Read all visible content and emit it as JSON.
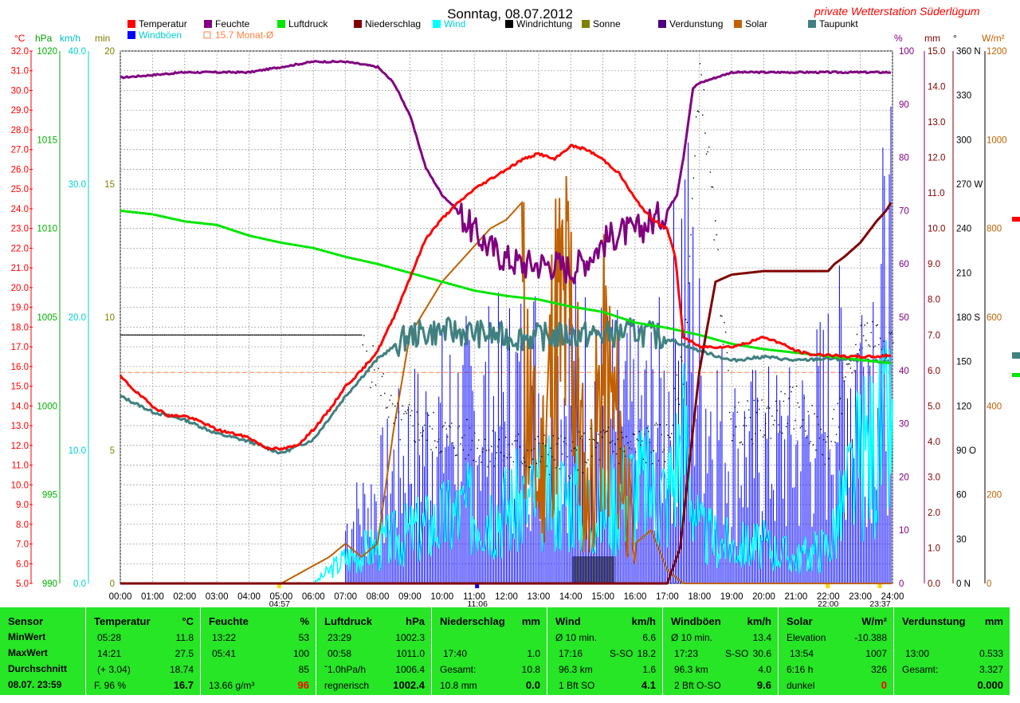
{
  "title": "Sonntag, 08.07.2012",
  "station": "private Wetterstation Süderlügum",
  "legend": [
    {
      "label": "Temperatur",
      "color": "#ff0000"
    },
    {
      "label": "Feuchte",
      "color": "#800080"
    },
    {
      "label": "Luftdruck",
      "color": "#00e600"
    },
    {
      "label": "Niederschlag",
      "color": "#800000"
    },
    {
      "label": "Wind",
      "color": "#00ffff"
    },
    {
      "label": "Windrichtung",
      "color": "#000000"
    },
    {
      "label": "Sonne",
      "color": "#808000"
    },
    {
      "label": "Verdunstung",
      "color": "#4b0082"
    },
    {
      "label": "Solar",
      "color": "#c06000"
    },
    {
      "label": "Taupunkt",
      "color": "#408080"
    },
    {
      "label": "Windböen",
      "color": "#0000ff"
    },
    {
      "label": "15.7 Monat-Ø",
      "color": "#ff8040"
    }
  ],
  "axes": {
    "units": {
      "temp": "°C",
      "pressure": "hPa",
      "wind": "km/h",
      "sun": "min",
      "humidity": "%",
      "rain": "mm",
      "dir": "°",
      "solar": "W/m²"
    },
    "temp_ticks": [
      "32.0",
      "31.0",
      "30.0",
      "29.0",
      "28.0",
      "27.0",
      "26.0",
      "25.0",
      "24.0",
      "23.0",
      "22.0",
      "21.0",
      "20.0",
      "19.0",
      "18.0",
      "17.0",
      "16.0",
      "15.0",
      "14.0",
      "13.0",
      "12.0",
      "11.0",
      "10.0",
      "9.0",
      "8.0",
      "7.0",
      "6.0",
      "5.0"
    ],
    "pressure_ticks": [
      "1020",
      "1015",
      "1010",
      "1005",
      "1000",
      "995",
      "990"
    ],
    "wind_ticks": [
      "40.0",
      "30.0",
      "20.0",
      "10.0",
      "0.0"
    ],
    "sun_ticks": [
      "20",
      "15",
      "10",
      "5",
      "0"
    ],
    "humidity_ticks": [
      "100",
      "90",
      "80",
      "70",
      "60",
      "50",
      "40",
      "30",
      "20",
      "10",
      "0"
    ],
    "rain_ticks": [
      "15.0",
      "14.0",
      "13.0",
      "12.0",
      "11.0",
      "10.0",
      "9.0",
      "8.0",
      "7.0",
      "6.0",
      "5.0",
      "4.0",
      "3.0",
      "2.0",
      "1.0",
      "0.0"
    ],
    "dir_ticks": [
      "360 N",
      "330",
      "300",
      "270 W",
      "240",
      "210",
      "180 S",
      "150",
      "120",
      "90 O",
      "60",
      "30",
      "0 N"
    ],
    "solar_ticks": [
      "1200",
      "1000",
      "800",
      "600",
      "400",
      "200",
      "0"
    ],
    "time_ticks": [
      "00:00",
      "01:00",
      "02:00",
      "03:00",
      "04:00",
      "05:00",
      "06:00",
      "07:00",
      "08:00",
      "09:00",
      "10:00",
      "11:00",
      "12:00",
      "13:00",
      "14:00",
      "15:00",
      "16:00",
      "17:00",
      "18:00",
      "19:00",
      "20:00",
      "21:00",
      "22:00",
      "23:00",
      "24:00"
    ],
    "markers": {
      "sunrise": "04:57",
      "noon": "11:06",
      "t22": "22:00",
      "end": "23:37"
    }
  },
  "chart_data": {
    "type": "line",
    "title": "Sonntag, 08.07.2012",
    "x_range": [
      "00:00",
      "24:00"
    ],
    "month_avg_temp": 15.7,
    "series": [
      {
        "name": "Temperatur",
        "unit": "°C",
        "x": [
          0,
          0.5,
          1,
          1.5,
          2,
          2.5,
          3,
          3.5,
          4,
          4.5,
          5,
          5.5,
          6,
          6.5,
          7,
          7.5,
          8,
          8.5,
          9,
          9.5,
          10,
          10.5,
          11,
          11.5,
          12,
          12.5,
          13,
          13.5,
          14,
          14.5,
          15,
          15.5,
          16,
          16.5,
          17,
          17.25,
          17.5,
          18,
          18.5,
          19,
          19.5,
          20,
          20.5,
          21,
          21.5,
          22,
          22.5,
          23,
          23.5,
          24
        ],
        "y": [
          15.5,
          14.7,
          14.0,
          13.5,
          13.5,
          13.2,
          12.8,
          12.6,
          12.4,
          11.9,
          11.8,
          12.0,
          12.8,
          13.8,
          15.0,
          15.8,
          16.8,
          18.5,
          20.5,
          22.5,
          23.5,
          24.3,
          25.0,
          25.5,
          26.0,
          26.5,
          26.8,
          26.5,
          27.2,
          27.0,
          26.5,
          25.8,
          24.5,
          23.5,
          23.0,
          21.5,
          17.5,
          17.0,
          17.0,
          17.0,
          17.2,
          17.5,
          17.2,
          16.8,
          16.6,
          16.6,
          16.5,
          16.5,
          16.5,
          16.6
        ]
      },
      {
        "name": "Feuchte",
        "unit": "%",
        "x": [
          0,
          1,
          2,
          3,
          4,
          5,
          6,
          7,
          8,
          8.5,
          9,
          9.5,
          10,
          10.5,
          11,
          11.5,
          12,
          12.5,
          13,
          13.5,
          14,
          14.5,
          15,
          15.5,
          16,
          16.5,
          17,
          17.3,
          17.5,
          17.8,
          18,
          18.5,
          19,
          20,
          21,
          22,
          23,
          24
        ],
        "y": [
          95,
          95.5,
          96,
          96,
          96,
          97,
          98,
          98,
          97,
          94,
          88,
          78,
          73,
          70,
          66,
          63,
          61,
          60,
          60,
          60,
          59,
          61,
          64,
          66,
          66,
          68,
          70,
          73,
          80,
          93,
          94,
          95,
          96,
          96,
          96,
          96,
          96,
          96
        ]
      },
      {
        "name": "Luftdruck",
        "unit": "hPa",
        "x": [
          0,
          1,
          2,
          3,
          4,
          5,
          6,
          7,
          8,
          9,
          10,
          11,
          12,
          13,
          14,
          15,
          16,
          17,
          18,
          19,
          20,
          21,
          22,
          23,
          24
        ],
        "y": [
          1011.0,
          1010.8,
          1010.4,
          1010.2,
          1009.6,
          1009.2,
          1008.9,
          1008.4,
          1008.0,
          1007.5,
          1007.0,
          1006.5,
          1006.2,
          1006.0,
          1005.6,
          1005.3,
          1004.7,
          1004.4,
          1004.0,
          1003.5,
          1003.2,
          1003.0,
          1002.8,
          1002.6,
          1002.4
        ]
      },
      {
        "name": "Taupunkt",
        "unit": "°C",
        "x": [
          0,
          1,
          2,
          3,
          4,
          5,
          6,
          7,
          8,
          9,
          10,
          11,
          12,
          13,
          14,
          15,
          16,
          17,
          18,
          19,
          20,
          21,
          22,
          23,
          24
        ],
        "y": [
          14.5,
          13.7,
          13.3,
          12.6,
          12.2,
          11.6,
          12.3,
          14.5,
          16.4,
          17.6,
          17.8,
          17.7,
          17.5,
          17.5,
          17.6,
          17.6,
          17.8,
          17.4,
          16.8,
          16.3,
          16.5,
          16.3,
          16.4,
          16.3,
          16.2
        ]
      },
      {
        "name": "Niederschlag",
        "unit": "mm",
        "x": [
          0,
          17.0,
          17.4,
          17.7,
          18.0,
          18.5,
          19.0,
          20.0,
          21.0,
          22.0,
          22.2,
          22.5,
          23.0,
          23.5,
          23.8,
          24.0
        ],
        "y": [
          0,
          0,
          1.0,
          3.5,
          6.0,
          8.5,
          8.7,
          8.8,
          8.8,
          8.8,
          9.0,
          9.2,
          9.6,
          10.2,
          10.5,
          10.8
        ]
      },
      {
        "name": "Solar",
        "unit": "W/m²",
        "x": [
          0,
          5,
          5.5,
          6,
          6.5,
          7,
          7.5,
          8,
          8.5,
          9,
          9.5,
          10,
          10.5,
          11,
          11.5,
          12,
          12.5,
          13,
          13.5,
          14,
          14.5,
          15,
          15.5,
          16,
          16.5,
          17,
          17.5,
          18,
          24
        ],
        "y": [
          0,
          0,
          20,
          40,
          60,
          90,
          60,
          90,
          350,
          560,
          620,
          680,
          720,
          760,
          800,
          820,
          860,
          300,
          850,
          900,
          250,
          700,
          520,
          90,
          120,
          30,
          0,
          0,
          0
        ]
      },
      {
        "name": "Wind",
        "unit": "km/h",
        "x": [
          0,
          6,
          7,
          8,
          9,
          10,
          11,
          12,
          13,
          14,
          15,
          16,
          17,
          17.5,
          18,
          19,
          20,
          21,
          22,
          23,
          24
        ],
        "y": [
          0,
          0,
          2,
          3,
          4,
          5,
          6,
          6,
          7,
          7,
          6,
          8,
          7,
          12,
          4,
          3,
          3,
          2,
          3,
          10,
          12
        ]
      },
      {
        "name": "Windböen",
        "unit": "km/h",
        "x": [
          0,
          6,
          7,
          8,
          9,
          10,
          11,
          12,
          13,
          14,
          15,
          16,
          17,
          17.5,
          18,
          19,
          20,
          21,
          22,
          23,
          24
        ],
        "y": [
          0,
          0,
          5,
          8,
          12,
          14,
          15,
          16,
          18,
          18,
          16,
          14,
          16,
          29,
          18,
          12,
          12,
          12,
          16,
          20,
          26
        ]
      },
      {
        "name": "Windrichtung",
        "unit": "°",
        "x": [
          0,
          7.5,
          7.6,
          8,
          8.5,
          9,
          10,
          11,
          12,
          13,
          14,
          15,
          16,
          17,
          17.5,
          18,
          19,
          20,
          21,
          22,
          23,
          24
        ],
        "y": [
          168,
          168,
          148,
          145,
          108,
          108,
          100,
          95,
          90,
          88,
          86,
          94,
          92,
          96,
          150,
          350,
          108,
          110,
          120,
          90,
          170,
          165
        ]
      },
      {
        "name": "Sonne",
        "unit": "min",
        "x": [
          14.0,
          14.2,
          14.4,
          14.6,
          14.8,
          15.0,
          15.2,
          15.4
        ],
        "y": [
          0,
          1,
          1,
          1,
          1,
          1,
          1,
          0
        ]
      }
    ]
  },
  "stats": {
    "sensor": {
      "header": "Sensor",
      "min": "MinWert",
      "max": "MaxWert",
      "avg": "Durchschnitt",
      "date": "08.07. 23:59"
    },
    "temp": {
      "header": "Temperatur",
      "unit": "°C",
      "min_t": "05:28",
      "min_v": "11.8",
      "max_t": "14:21",
      "max_v": "27.5",
      "avg_t": "(+ 3.04)",
      "avg_v": "18.74",
      "cur_l": "F. 96 %",
      "cur_v": "16.7"
    },
    "hum": {
      "header": "Feuchte",
      "unit": "%",
      "min_t": "13:22",
      "min_v": "53",
      "max_t": "05:41",
      "max_v": "100",
      "avg_v": "85",
      "cur_l": "13.66 g/m³",
      "cur_v": "96"
    },
    "press": {
      "header": "Luftdruck",
      "unit": "hPa",
      "min_t": "23:29",
      "min_v": "1002.3",
      "max_t": "00:58",
      "max_v": "1011.0",
      "avg_t": "ˇ1.0hPa/h",
      "avg_v": "1006.4",
      "cur_l": "regnerisch",
      "cur_v": "1002.4"
    },
    "rain": {
      "header": "Niederschlag",
      "unit": "mm",
      "max_t": "17:40",
      "max_v": "1.0",
      "avg_t": "Gesamt:",
      "avg_v": "10.8",
      "cur_l": "10.8 mm",
      "cur_v": "0.0"
    },
    "wind": {
      "header": "Wind",
      "unit": "km/h",
      "min_t": "Ø 10 min.",
      "min_v": "6.6",
      "max_t": "17:16",
      "max_m": "S-SO",
      "max_v": "18.2",
      "avg_t": "96.3 km",
      "avg_v": "1.6",
      "cur_l": "1 Bft SO",
      "cur_v": "4.1"
    },
    "gust": {
      "header": "Windböen",
      "unit": "km/h",
      "min_t": "Ø 10 min.",
      "min_v": "13.4",
      "max_t": "17:23",
      "max_m": "S-SO",
      "max_v": "30.6",
      "avg_t": "96.3 km",
      "avg_v": "4.0",
      "cur_l": "2 Bft O-SO",
      "cur_v": "9.6"
    },
    "solar": {
      "header": "Solar",
      "unit": "W/m²",
      "min_t": "Elevation",
      "min_v": "-10.388",
      "max_t": "13:54",
      "max_v": "1007",
      "avg_t": "6:16 h",
      "avg_v": "326",
      "cur_l": "dunkel",
      "cur_v": "0"
    },
    "evap": {
      "header": "Verdunstung",
      "unit": "mm",
      "max_t": "13:00",
      "max_v": "0.533",
      "avg_t": "Gesamt:",
      "avg_v": "3.327",
      "cur_v": "0.000"
    }
  }
}
